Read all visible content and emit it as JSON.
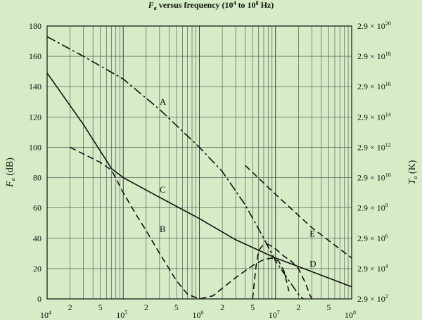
{
  "chart_data": {
    "type": "line",
    "title": "F",
    "title_sub": "a",
    "title_rest": " versus frequency (10",
    "title_sup1": "4",
    "title_mid": " to 10",
    "title_sup2": "8",
    "title_end": " Hz)",
    "ylabel": "F",
    "ylabel_sub": "a",
    "ylabel_unit": " (dB)",
    "y2label": "T",
    "y2label_sub": "a",
    "y2label_unit": " (K)",
    "xlim": [
      10000,
      100000000
    ],
    "ylim": [
      0,
      180
    ],
    "x_scale": "log",
    "grid": true,
    "y_ticks": [
      0,
      20,
      40,
      60,
      80,
      100,
      120,
      140,
      160,
      180
    ],
    "x_major_ticks": [
      {
        "value": 10000,
        "base": "10",
        "exp": "4"
      },
      {
        "value": 100000,
        "base": "10",
        "exp": "5"
      },
      {
        "value": 1000000,
        "base": "10",
        "exp": "6"
      },
      {
        "value": 10000000,
        "base": "10",
        "exp": "7"
      },
      {
        "value": 100000000,
        "base": "10",
        "exp": "8"
      }
    ],
    "x_minor_labels": [
      {
        "value": 20000,
        "label": "2"
      },
      {
        "value": 50000,
        "label": "5"
      },
      {
        "value": 200000,
        "label": "2"
      },
      {
        "value": 500000,
        "label": "5"
      },
      {
        "value": 2000000,
        "label": "2"
      },
      {
        "value": 5000000,
        "label": "5"
      },
      {
        "value": 20000000,
        "label": "2"
      },
      {
        "value": 50000000,
        "label": "5"
      }
    ],
    "y2_ticks": [
      {
        "value": 0,
        "text": "2.9 × 10",
        "exp": "2"
      },
      {
        "value": 20,
        "text": "2.9 × 10",
        "exp": "4"
      },
      {
        "value": 40,
        "text": "2.9 × 10",
        "exp": "6"
      },
      {
        "value": 60,
        "text": "2.9 × 10",
        "exp": "8"
      },
      {
        "value": 80,
        "text": "2.9 × 10",
        "exp": "10"
      },
      {
        "value": 100,
        "text": "2.9 × 10",
        "exp": "12"
      },
      {
        "value": 120,
        "text": "2.9 × 10",
        "exp": "14"
      },
      {
        "value": 140,
        "text": "2.9 × 10",
        "exp": "16"
      },
      {
        "value": 160,
        "text": "2.9 × 10",
        "exp": "18"
      },
      {
        "value": 180,
        "text": "2.9 × 10",
        "exp": "20"
      }
    ],
    "series": [
      {
        "name": "A",
        "style": "dashdot",
        "x": [
          10000,
          30000,
          100000,
          300000,
          1000000,
          2000000,
          4000000,
          7000000,
          10000000,
          15000000,
          20000000,
          23000000
        ],
        "y": [
          173,
          160,
          145,
          125,
          100,
          84,
          62,
          40,
          25,
          12,
          3,
          0
        ],
        "label_at": {
          "x": 300000,
          "y": 130
        }
      },
      {
        "name": "B",
        "style": "dash",
        "x": [
          20000,
          50000,
          70000,
          100000,
          150000,
          200000,
          300000,
          500000,
          700000,
          1000000,
          1500000,
          2000000,
          3000000,
          5000000,
          7000000,
          9000000,
          11000000,
          13000000,
          15000000
        ],
        "y": [
          100,
          90,
          85,
          70,
          55,
          45,
          30,
          12,
          3,
          0,
          2,
          7,
          14,
          22,
          26,
          27,
          25,
          18,
          5
        ],
        "label_at": {
          "x": 300000,
          "y": 46
        }
      },
      {
        "name": "C",
        "style": "solid",
        "x": [
          10000,
          30000,
          70000,
          100000,
          300000,
          1000000,
          3000000,
          10000000,
          30000000,
          100000000
        ],
        "y": [
          149,
          115,
          86,
          80,
          67,
          53,
          39,
          27,
          18,
          8
        ],
        "label_at": {
          "x": 300000,
          "y": 72
        }
      },
      {
        "name": "D",
        "style": "dash",
        "x": [
          5000000,
          5500000,
          6000000,
          7000000,
          8000000,
          10000000,
          13000000,
          16000000,
          20000000,
          25000000,
          28000000,
          30000000
        ],
        "y": [
          0,
          20,
          32,
          36,
          36,
          33,
          28,
          25,
          20,
          10,
          3,
          0
        ],
        "label_at": {
          "x": 28000000,
          "y": 23
        }
      },
      {
        "name": "E",
        "style": "dash",
        "x": [
          4000000,
          10000000,
          30000000,
          100000000
        ],
        "y": [
          88,
          69,
          47,
          27
        ],
        "label_at": {
          "x": 28000000,
          "y": 43
        }
      }
    ]
  }
}
